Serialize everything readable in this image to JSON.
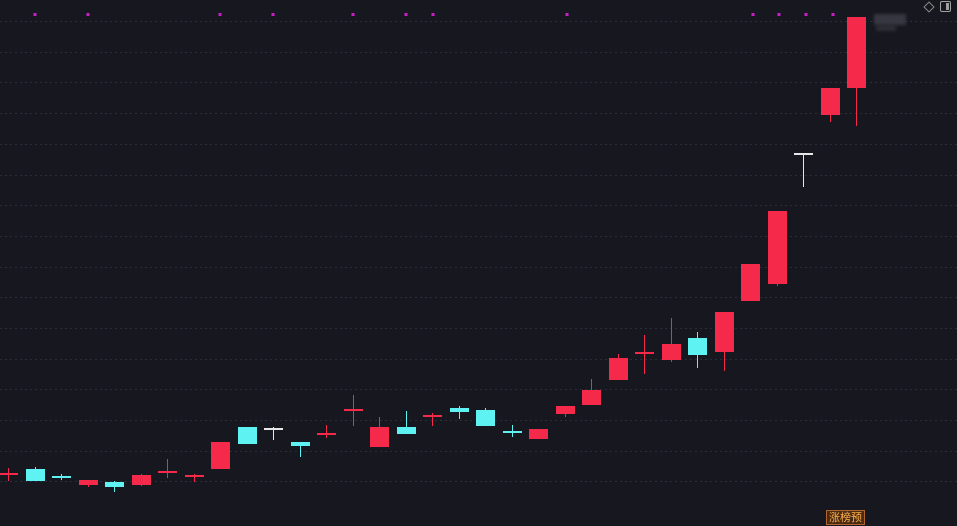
{
  "colors": {
    "background": "#17171f",
    "up": "#f5294a",
    "down": "#5ef2f2",
    "doji": "#e6e6e6",
    "marker": "#c81ec8",
    "grid": "#2b2d38"
  },
  "toolbar": {
    "icons": [
      "diamond-icon",
      "panel-icon"
    ]
  },
  "badge": {
    "label": "涨榜预"
  },
  "chart_data": {
    "type": "candlestick",
    "title": "",
    "xlabel": "",
    "ylabel": "",
    "ylim": [
      0,
      510
    ],
    "grid": true,
    "candles": [
      {
        "o": 53,
        "c": 52,
        "h": 58,
        "l": 45,
        "dir": "up"
      },
      {
        "o": 57,
        "c": 45,
        "h": 59,
        "l": 45,
        "dir": "down"
      },
      {
        "o": 50,
        "c": 48,
        "h": 52,
        "l": 46,
        "dir": "down"
      },
      {
        "o": 41,
        "c": 46,
        "h": 46,
        "l": 39,
        "dir": "up"
      },
      {
        "o": 44,
        "c": 39,
        "h": 45,
        "l": 34,
        "dir": "down"
      },
      {
        "o": 41,
        "c": 51,
        "h": 52,
        "l": 40,
        "dir": "up"
      },
      {
        "o": 53,
        "c": 55,
        "h": 67,
        "l": 48,
        "dir": "up"
      },
      {
        "o": 51,
        "c": 51,
        "h": 52,
        "l": 44,
        "dir": "up"
      },
      {
        "o": 57,
        "c": 84,
        "h": 84,
        "l": 57,
        "dir": "up"
      },
      {
        "o": 99,
        "c": 82,
        "h": 99,
        "l": 82,
        "dir": "down"
      },
      {
        "o": 98,
        "c": 97,
        "h": 99,
        "l": 86,
        "dir": "doji"
      },
      {
        "o": 84,
        "c": 80,
        "h": 84,
        "l": 69,
        "dir": "down"
      },
      {
        "o": 93,
        "c": 93,
        "h": 101,
        "l": 88,
        "dir": "up"
      },
      {
        "o": 116,
        "c": 117,
        "h": 131,
        "l": 100,
        "dir": "up"
      },
      {
        "o": 79,
        "c": 99,
        "h": 109,
        "l": 79,
        "dir": "up"
      },
      {
        "o": 99,
        "c": 92,
        "h": 115,
        "l": 92,
        "dir": "down"
      },
      {
        "o": 110,
        "c": 111,
        "h": 113,
        "l": 100,
        "dir": "up"
      },
      {
        "o": 118,
        "c": 114,
        "h": 120,
        "l": 107,
        "dir": "down"
      },
      {
        "o": 116,
        "c": 100,
        "h": 118,
        "l": 100,
        "dir": "down"
      },
      {
        "o": 93,
        "c": 95,
        "h": 101,
        "l": 89,
        "dir": "down"
      },
      {
        "o": 87,
        "c": 97,
        "h": 97,
        "l": 87,
        "dir": "up"
      },
      {
        "o": 112,
        "c": 120,
        "h": 120,
        "l": 109,
        "dir": "up"
      },
      {
        "o": 121,
        "c": 136,
        "h": 147,
        "l": 121,
        "dir": "up"
      },
      {
        "o": 146,
        "c": 168,
        "h": 172,
        "l": 146,
        "dir": "up"
      },
      {
        "o": 173,
        "c": 174,
        "h": 191,
        "l": 152,
        "dir": "up"
      },
      {
        "o": 166,
        "c": 182,
        "h": 208,
        "l": 164,
        "dir": "up"
      },
      {
        "o": 171,
        "c": 188,
        "h": 194,
        "l": 158,
        "dir": "down"
      },
      {
        "o": 174,
        "c": 214,
        "h": 214,
        "l": 155,
        "dir": "up"
      },
      {
        "o": 225,
        "c": 262,
        "h": 262,
        "l": 225,
        "dir": "up"
      },
      {
        "o": 242,
        "c": 315,
        "h": 315,
        "l": 240,
        "dir": "up"
      },
      {
        "o": 372,
        "c": 373,
        "h": 373,
        "l": 339,
        "dir": "doji"
      },
      {
        "o": 411,
        "c": 438,
        "h": 438,
        "l": 404,
        "dir": "up"
      },
      {
        "o": 438,
        "c": 509,
        "h": 509,
        "l": 400,
        "dir": "up"
      }
    ],
    "markers": [
      35,
      88,
      220,
      273,
      353,
      406,
      433,
      567,
      753,
      779,
      806,
      833
    ]
  }
}
